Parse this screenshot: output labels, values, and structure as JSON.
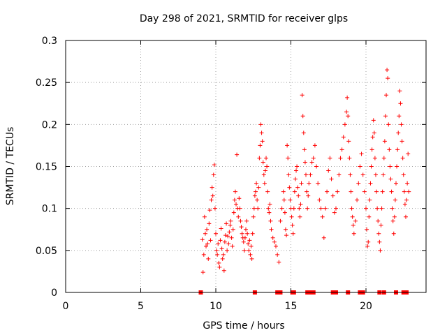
{
  "chart_data": {
    "type": "scatter",
    "title": "Day 298 of 2021, SRMTID for receiver glps",
    "xlabel": "GPS time / hours",
    "ylabel": "SRMTID / TECUs",
    "xlim": [
      0,
      24
    ],
    "ylim": [
      0,
      0.3
    ],
    "xticks": [
      0,
      5,
      10,
      15,
      20
    ],
    "yticks": [
      0,
      0.05,
      0.1,
      0.15,
      0.2,
      0.25,
      0.3
    ],
    "grid": true,
    "marker": "+",
    "color": "#ff0000",
    "series": [
      {
        "name": "SRMTID",
        "points": [
          [
            9.1,
            0.063
          ],
          [
            9.15,
            0.024
          ],
          [
            9.2,
            0.045
          ],
          [
            9.25,
            0.09
          ],
          [
            9.3,
            0.07
          ],
          [
            9.35,
            0.055
          ],
          [
            9.4,
            0.075
          ],
          [
            9.45,
            0.058
          ],
          [
            9.5,
            0.04
          ],
          [
            9.55,
            0.082
          ],
          [
            9.6,
            0.098
          ],
          [
            9.65,
            0.062
          ],
          [
            9.7,
            0.11
          ],
          [
            9.75,
            0.125
          ],
          [
            9.8,
            0.115
          ],
          [
            9.85,
            0.14
          ],
          [
            9.9,
            0.152
          ],
          [
            9.95,
            0.1
          ],
          [
            10.0,
            0.07
          ],
          [
            10.05,
            0.05
          ],
          [
            10.1,
            0.045
          ],
          [
            10.15,
            0.058
          ],
          [
            10.2,
            0.035
          ],
          [
            10.25,
            0.03
          ],
          [
            10.3,
            0.062
          ],
          [
            10.35,
            0.076
          ],
          [
            10.4,
            0.052
          ],
          [
            10.45,
            0.04
          ],
          [
            10.5,
            0.045
          ],
          [
            10.55,
            0.026
          ],
          [
            10.6,
            0.06
          ],
          [
            10.65,
            0.068
          ],
          [
            10.7,
            0.082
          ],
          [
            10.75,
            0.05
          ],
          [
            10.8,
            0.067
          ],
          [
            10.85,
            0.058
          ],
          [
            10.9,
            0.072
          ],
          [
            10.95,
            0.08
          ],
          [
            11.0,
            0.085
          ],
          [
            11.05,
            0.065
          ],
          [
            11.1,
            0.055
          ],
          [
            11.15,
            0.075
          ],
          [
            11.2,
            0.095
          ],
          [
            11.25,
            0.11
          ],
          [
            11.3,
            0.12
          ],
          [
            11.35,
            0.105
          ],
          [
            11.4,
            0.164
          ],
          [
            11.45,
            0.1
          ],
          [
            11.5,
            0.09
          ],
          [
            11.55,
            0.112
          ],
          [
            11.6,
            0.1
          ],
          [
            11.65,
            0.085
          ],
          [
            11.7,
            0.078
          ],
          [
            11.75,
            0.07
          ],
          [
            11.8,
            0.065
          ],
          [
            11.85,
            0.06
          ],
          [
            11.9,
            0.05
          ],
          [
            11.95,
            0.065
          ],
          [
            12.0,
            0.075
          ],
          [
            12.05,
            0.085
          ],
          [
            12.1,
            0.07
          ],
          [
            12.15,
            0.058
          ],
          [
            12.2,
            0.05
          ],
          [
            12.25,
            0.062
          ],
          [
            12.3,
            0.045
          ],
          [
            12.35,
            0.055
          ],
          [
            12.4,
            0.04
          ],
          [
            12.45,
            0.07
          ],
          [
            12.5,
            0.09
          ],
          [
            12.55,
            0.1
          ],
          [
            12.6,
            0.115
          ],
          [
            12.65,
            0.12
          ],
          [
            12.7,
            0.13
          ],
          [
            12.75,
            0.11
          ],
          [
            12.8,
            0.1
          ],
          [
            12.85,
            0.125
          ],
          [
            12.9,
            0.16
          ],
          [
            12.95,
            0.175
          ],
          [
            13.0,
            0.2
          ],
          [
            13.05,
            0.19
          ],
          [
            13.1,
            0.18
          ],
          [
            13.15,
            0.155
          ],
          [
            13.2,
            0.14
          ],
          [
            13.25,
            0.13
          ],
          [
            13.3,
            0.145
          ],
          [
            13.35,
            0.16
          ],
          [
            13.4,
            0.15
          ],
          [
            13.45,
            0.12
          ],
          [
            13.5,
            0.1
          ],
          [
            13.55,
            0.095
          ],
          [
            13.6,
            0.105
          ],
          [
            13.65,
            0.085
          ],
          [
            13.7,
            0.075
          ],
          [
            13.8,
            0.065
          ],
          [
            13.9,
            0.06
          ],
          [
            14.0,
            0.055
          ],
          [
            14.1,
            0.045
          ],
          [
            14.2,
            0.036
          ],
          [
            14.3,
            0.085
          ],
          [
            14.4,
            0.1
          ],
          [
            14.5,
            0.12
          ],
          [
            14.55,
            0.11
          ],
          [
            14.6,
            0.095
          ],
          [
            14.65,
            0.075
          ],
          [
            14.7,
            0.068
          ],
          [
            14.75,
            0.175
          ],
          [
            14.8,
            0.16
          ],
          [
            14.85,
            0.14
          ],
          [
            14.9,
            0.125
          ],
          [
            14.95,
            0.11
          ],
          [
            15.0,
            0.1
          ],
          [
            15.05,
            0.09
          ],
          [
            15.1,
            0.08
          ],
          [
            15.15,
            0.07
          ],
          [
            15.2,
            0.1
          ],
          [
            15.25,
            0.12
          ],
          [
            15.3,
            0.135
          ],
          [
            15.35,
            0.145
          ],
          [
            15.4,
            0.15
          ],
          [
            15.45,
            0.125
          ],
          [
            15.5,
            0.115
          ],
          [
            15.55,
            0.1
          ],
          [
            15.6,
            0.09
          ],
          [
            15.65,
            0.105
          ],
          [
            15.7,
            0.13
          ],
          [
            15.75,
            0.235
          ],
          [
            15.8,
            0.21
          ],
          [
            15.85,
            0.19
          ],
          [
            15.9,
            0.17
          ],
          [
            15.95,
            0.155
          ],
          [
            16.0,
            0.14
          ],
          [
            16.05,
            0.12
          ],
          [
            16.1,
            0.1
          ],
          [
            16.15,
            0.115
          ],
          [
            16.2,
            0.13
          ],
          [
            16.3,
            0.14
          ],
          [
            16.4,
            0.155
          ],
          [
            16.5,
            0.16
          ],
          [
            16.6,
            0.175
          ],
          [
            16.7,
            0.15
          ],
          [
            16.8,
            0.13
          ],
          [
            16.9,
            0.11
          ],
          [
            17.0,
            0.1
          ],
          [
            17.1,
            0.09
          ],
          [
            17.2,
            0.065
          ],
          [
            17.3,
            0.1
          ],
          [
            17.4,
            0.12
          ],
          [
            17.5,
            0.145
          ],
          [
            17.6,
            0.16
          ],
          [
            17.7,
            0.135
          ],
          [
            17.8,
            0.115
          ],
          [
            17.9,
            0.095
          ],
          [
            18.0,
            0.1
          ],
          [
            18.1,
            0.12
          ],
          [
            18.2,
            0.14
          ],
          [
            18.3,
            0.16
          ],
          [
            18.4,
            0.17
          ],
          [
            18.5,
            0.185
          ],
          [
            18.6,
            0.2
          ],
          [
            18.7,
            0.215
          ],
          [
            18.75,
            0.232
          ],
          [
            18.8,
            0.21
          ],
          [
            18.85,
            0.18
          ],
          [
            18.9,
            0.16
          ],
          [
            18.95,
            0.14
          ],
          [
            19.0,
            0.12
          ],
          [
            19.05,
            0.1
          ],
          [
            19.1,
            0.09
          ],
          [
            19.15,
            0.08
          ],
          [
            19.2,
            0.07
          ],
          [
            19.3,
            0.085
          ],
          [
            19.4,
            0.11
          ],
          [
            19.5,
            0.13
          ],
          [
            19.6,
            0.15
          ],
          [
            19.7,
            0.165
          ],
          [
            19.8,
            0.14
          ],
          [
            19.9,
            0.12
          ],
          [
            20.0,
            0.1
          ],
          [
            20.05,
            0.075
          ],
          [
            20.1,
            0.055
          ],
          [
            20.15,
            0.06
          ],
          [
            20.2,
            0.09
          ],
          [
            20.25,
            0.11
          ],
          [
            20.3,
            0.13
          ],
          [
            20.35,
            0.15
          ],
          [
            20.4,
            0.17
          ],
          [
            20.45,
            0.185
          ],
          [
            20.5,
            0.205
          ],
          [
            20.55,
            0.19
          ],
          [
            20.6,
            0.16
          ],
          [
            20.65,
            0.14
          ],
          [
            20.7,
            0.12
          ],
          [
            20.75,
            0.1
          ],
          [
            20.8,
            0.085
          ],
          [
            20.85,
            0.07
          ],
          [
            20.9,
            0.06
          ],
          [
            20.95,
            0.05
          ],
          [
            21.0,
            0.08
          ],
          [
            21.05,
            0.1
          ],
          [
            21.1,
            0.12
          ],
          [
            21.15,
            0.14
          ],
          [
            21.2,
            0.16
          ],
          [
            21.25,
            0.18
          ],
          [
            21.3,
            0.21
          ],
          [
            21.35,
            0.235
          ],
          [
            21.4,
            0.265
          ],
          [
            21.45,
            0.255
          ],
          [
            21.5,
            0.2
          ],
          [
            21.55,
            0.17
          ],
          [
            21.6,
            0.15
          ],
          [
            21.65,
            0.135
          ],
          [
            21.7,
            0.12
          ],
          [
            21.75,
            0.1
          ],
          [
            21.8,
            0.085
          ],
          [
            21.85,
            0.07
          ],
          [
            21.9,
            0.09
          ],
          [
            21.95,
            0.11
          ],
          [
            22.0,
            0.13
          ],
          [
            22.05,
            0.15
          ],
          [
            22.1,
            0.17
          ],
          [
            22.15,
            0.19
          ],
          [
            22.2,
            0.21
          ],
          [
            22.25,
            0.24
          ],
          [
            22.3,
            0.225
          ],
          [
            22.35,
            0.2
          ],
          [
            22.4,
            0.18
          ],
          [
            22.45,
            0.16
          ],
          [
            22.5,
            0.14
          ],
          [
            22.55,
            0.12
          ],
          [
            22.6,
            0.105
          ],
          [
            22.65,
            0.09
          ],
          [
            22.7,
            0.11
          ],
          [
            22.75,
            0.13
          ],
          [
            22.8,
            0.165
          ],
          [
            22.85,
            0.12
          ]
        ]
      }
    ],
    "x_axis_markers": [
      9.0,
      12.6,
      14.1,
      14.3,
      15.1,
      15.2,
      16.1,
      16.3,
      16.5,
      17.8,
      18.0,
      18.8,
      19.6,
      19.8,
      20.9,
      21.2,
      22.0,
      22.5,
      22.7
    ]
  }
}
